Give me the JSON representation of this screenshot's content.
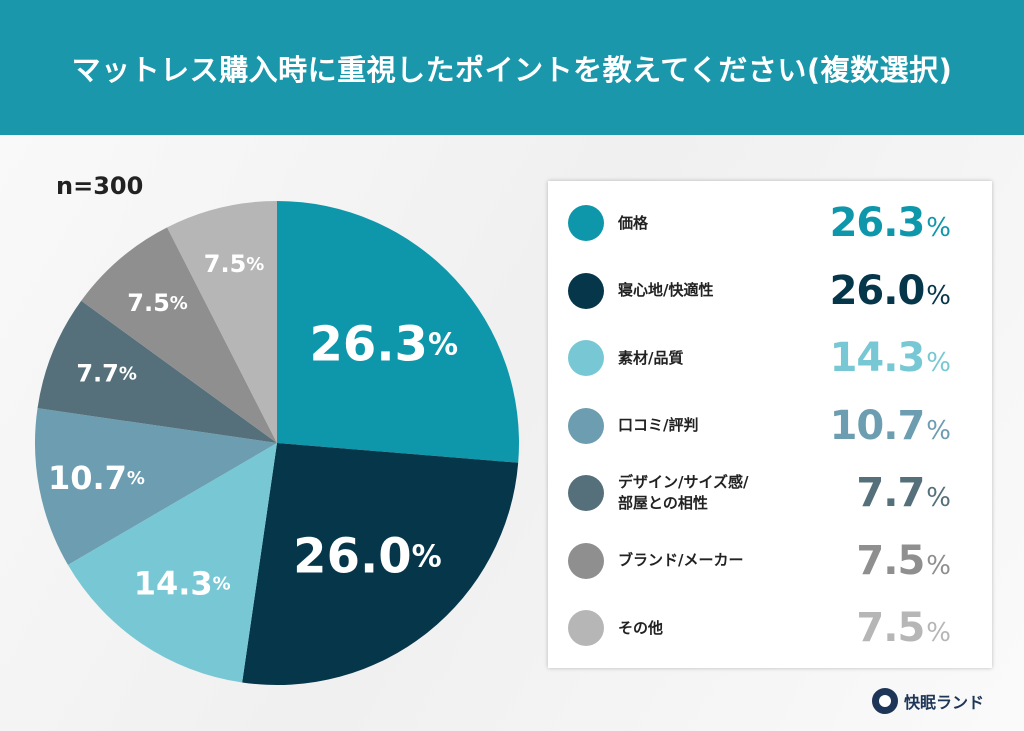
{
  "title": "マットレス購入時に重視したポイントを教えてください(複数選択)",
  "sample": "n=300",
  "brand": "快眠ランド",
  "chart_data": {
    "type": "pie",
    "title": "マットレス購入時に重視したポイントを教えてください(複数選択)",
    "start": "top",
    "direction": "clockwise",
    "legend_placement": "right",
    "unit": "%",
    "slices": [
      {
        "label": "価格",
        "value": 26.3,
        "display": "26.3",
        "color": "#0e97ab"
      },
      {
        "label": "寝心地/快適性",
        "value": 26.0,
        "display": "26.0",
        "color": "#05364a"
      },
      {
        "label": "素材/品質",
        "value": 14.3,
        "display": "14.3",
        "color": "#77c8d4"
      },
      {
        "label": "口コミ/評判",
        "value": 10.7,
        "display": "10.7",
        "color": "#6d9db0"
      },
      {
        "label": "デザイン/サイズ感/部屋との相性",
        "label_lines": [
          "デザイン/サイズ感/",
          "部屋との相性"
        ],
        "value": 7.7,
        "display": "7.7",
        "color": "#55707a"
      },
      {
        "label": "ブランド/メーカー",
        "value": 7.5,
        "display": "7.5",
        "color": "#8f8f8f"
      },
      {
        "label": "その他",
        "value": 7.5,
        "display": "7.5",
        "color": "#b6b6b6"
      }
    ]
  }
}
